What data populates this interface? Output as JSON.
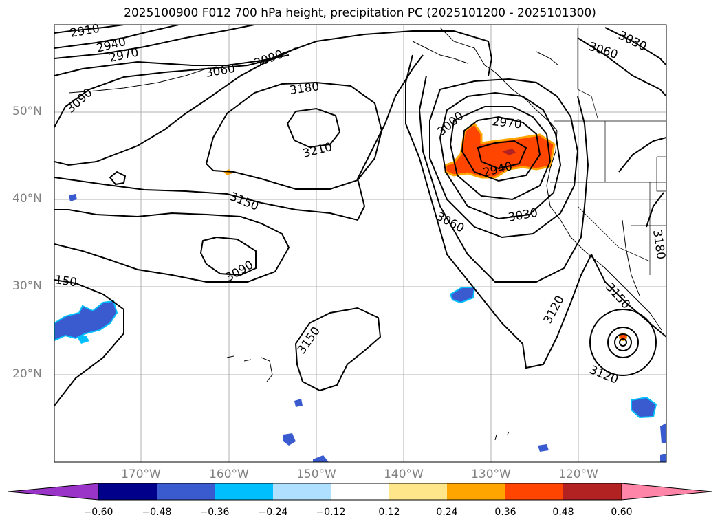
{
  "title": "2025100900 F012 700 hPa height, precipitation PC (2025101200 - 2025101300)",
  "lat_labels": [
    "50°N",
    "40°N",
    "30°N",
    "20°N"
  ],
  "lon_labels": [
    "170°W",
    "160°W",
    "150°W",
    "140°W",
    "130°W",
    "120°W"
  ],
  "contour_labels": [
    "2910",
    "2940",
    "2970",
    "3000",
    "3030",
    "3060",
    "3090",
    "3120",
    "3150",
    "3180",
    "3210"
  ],
  "colorbar": {
    "ticks": [
      "−0.60",
      "−0.48",
      "−0.36",
      "−0.24",
      "−0.12",
      "0.12",
      "0.24",
      "0.36",
      "0.48",
      "0.60"
    ],
    "colors": [
      "#9a34c9",
      "#00008b",
      "#3a5bcf",
      "#00bfff",
      "#b0e0ff",
      "#ffffff",
      "#ffe68a",
      "#ffa500",
      "#ff4500",
      "#b22222",
      "#ff85a8"
    ]
  },
  "chart_data": {
    "type": "contour-map",
    "variable_contours": "700 hPa geopotential height (m)",
    "variable_fill": "precipitation PC",
    "contour_levels": [
      2910,
      2940,
      2970,
      3000,
      3030,
      3060,
      3090,
      3120,
      3150,
      3180,
      3210
    ],
    "fill_levels": [
      -0.6,
      -0.48,
      -0.36,
      -0.24,
      -0.12,
      0.12,
      0.24,
      0.36,
      0.48,
      0.6
    ],
    "lon_range": [
      "180°W",
      "110°W"
    ],
    "lat_range": [
      "10°N",
      "60°N"
    ],
    "features": [
      {
        "type": "low",
        "label": "2940",
        "near": "44°N 130°W"
      },
      {
        "type": "high",
        "label": "3210",
        "near": "47°N 150°W"
      },
      {
        "type": "low",
        "label": "3090",
        "near": "35°N 157°W"
      },
      {
        "type": "closed-low",
        "near": "23°N 115°W"
      }
    ]
  }
}
